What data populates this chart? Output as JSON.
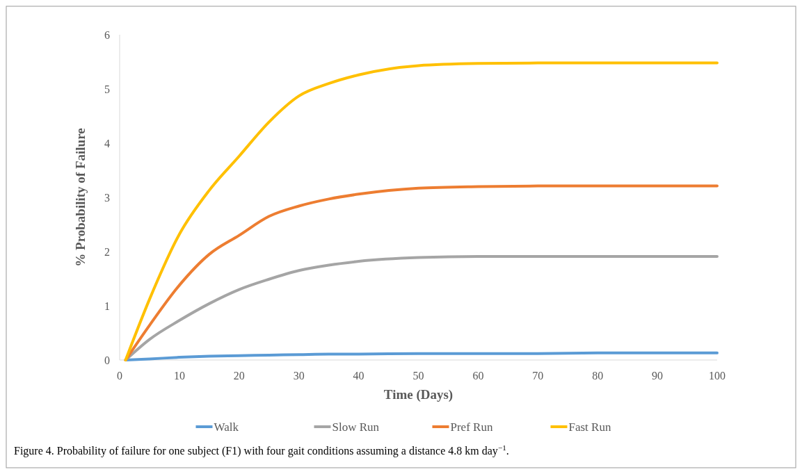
{
  "chart_data": {
    "type": "line",
    "xlabel": "Time (Days)",
    "ylabel": "% Probability of Failure",
    "annotations": [
      "Figure 4. Probability of failure for one subject (F1) with four gait conditions assuming a distance 4.8 km day$^{−1}$."
    ],
    "x": [
      1,
      5,
      10,
      15,
      20,
      25,
      30,
      35,
      40,
      50,
      60,
      70,
      80,
      90,
      100
    ],
    "series": [
      {
        "name": "Walk",
        "color": "#5b9bd5",
        "values": [
          0,
          0.02,
          0.05,
          0.07,
          0.08,
          0.09,
          0.1,
          0.11,
          0.11,
          0.12,
          0.12,
          0.12,
          0.13,
          0.13,
          0.13
        ]
      },
      {
        "name": "Slow Run",
        "color": "#a5a5a5",
        "values": [
          0,
          0.38,
          0.73,
          1.04,
          1.3,
          1.49,
          1.65,
          1.75,
          1.82,
          1.89,
          1.91,
          1.91,
          1.91,
          1.91,
          1.91
        ]
      },
      {
        "name": "Pref Run",
        "color": "#ed7d31",
        "values": [
          0,
          0.64,
          1.38,
          1.95,
          2.3,
          2.65,
          2.84,
          2.97,
          3.06,
          3.17,
          3.2,
          3.21,
          3.21,
          3.21,
          3.21
        ]
      },
      {
        "name": "Fast Run",
        "color": "#ffc000",
        "values": [
          0,
          1.12,
          2.32,
          3.13,
          3.76,
          4.39,
          4.87,
          5.1,
          5.26,
          5.43,
          5.47,
          5.48,
          5.48,
          5.48,
          5.48
        ]
      }
    ],
    "xlim": [
      0,
      100
    ],
    "xticks": [
      0,
      10,
      20,
      30,
      40,
      50,
      60,
      70,
      80,
      90,
      100
    ],
    "ylim": [
      0,
      6
    ],
    "yticks": [
      0,
      1,
      2,
      3,
      4,
      5,
      6
    ],
    "grid": false,
    "legend": "bottom",
    "marker": "none",
    "line_style": "solid"
  }
}
